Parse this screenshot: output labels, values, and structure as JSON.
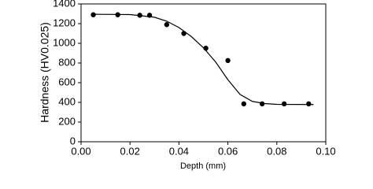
{
  "chart_data": {
    "type": "scatter",
    "xlabel": "Depth (mm)",
    "ylabel": "Hardness (HV0.025)",
    "xlim": [
      0,
      0.1
    ],
    "ylim": [
      0,
      1400
    ],
    "xticks": [
      {
        "value": 0,
        "label": "0.00"
      },
      0.02,
      0.04,
      0.06,
      0.08,
      {
        "value": 0.1,
        "label": "0.10"
      }
    ],
    "yticks": [
      0,
      200,
      400,
      600,
      800,
      1000,
      1200,
      1400
    ],
    "grid": false,
    "series": [
      {
        "style": "marker",
        "color": "#000000",
        "x": [
          0.005,
          0.015,
          0.024,
          0.028,
          0.035,
          0.042,
          0.051,
          0.06,
          0.0665,
          0.074,
          0.083,
          0.093
        ],
        "values": [
          1290,
          1290,
          1285,
          1285,
          1190,
          1100,
          950,
          825,
          385,
          385,
          385,
          385
        ]
      },
      {
        "style": "line",
        "color": "#000000",
        "x": [
          0.005,
          0.02,
          0.03,
          0.035,
          0.04,
          0.045,
          0.05,
          0.055,
          0.06,
          0.065,
          0.07,
          0.075,
          0.08,
          0.095
        ],
        "values": [
          1295,
          1292,
          1265,
          1225,
          1160,
          1070,
          955,
          810,
          630,
          480,
          410,
          388,
          380,
          378
        ]
      }
    ]
  }
}
